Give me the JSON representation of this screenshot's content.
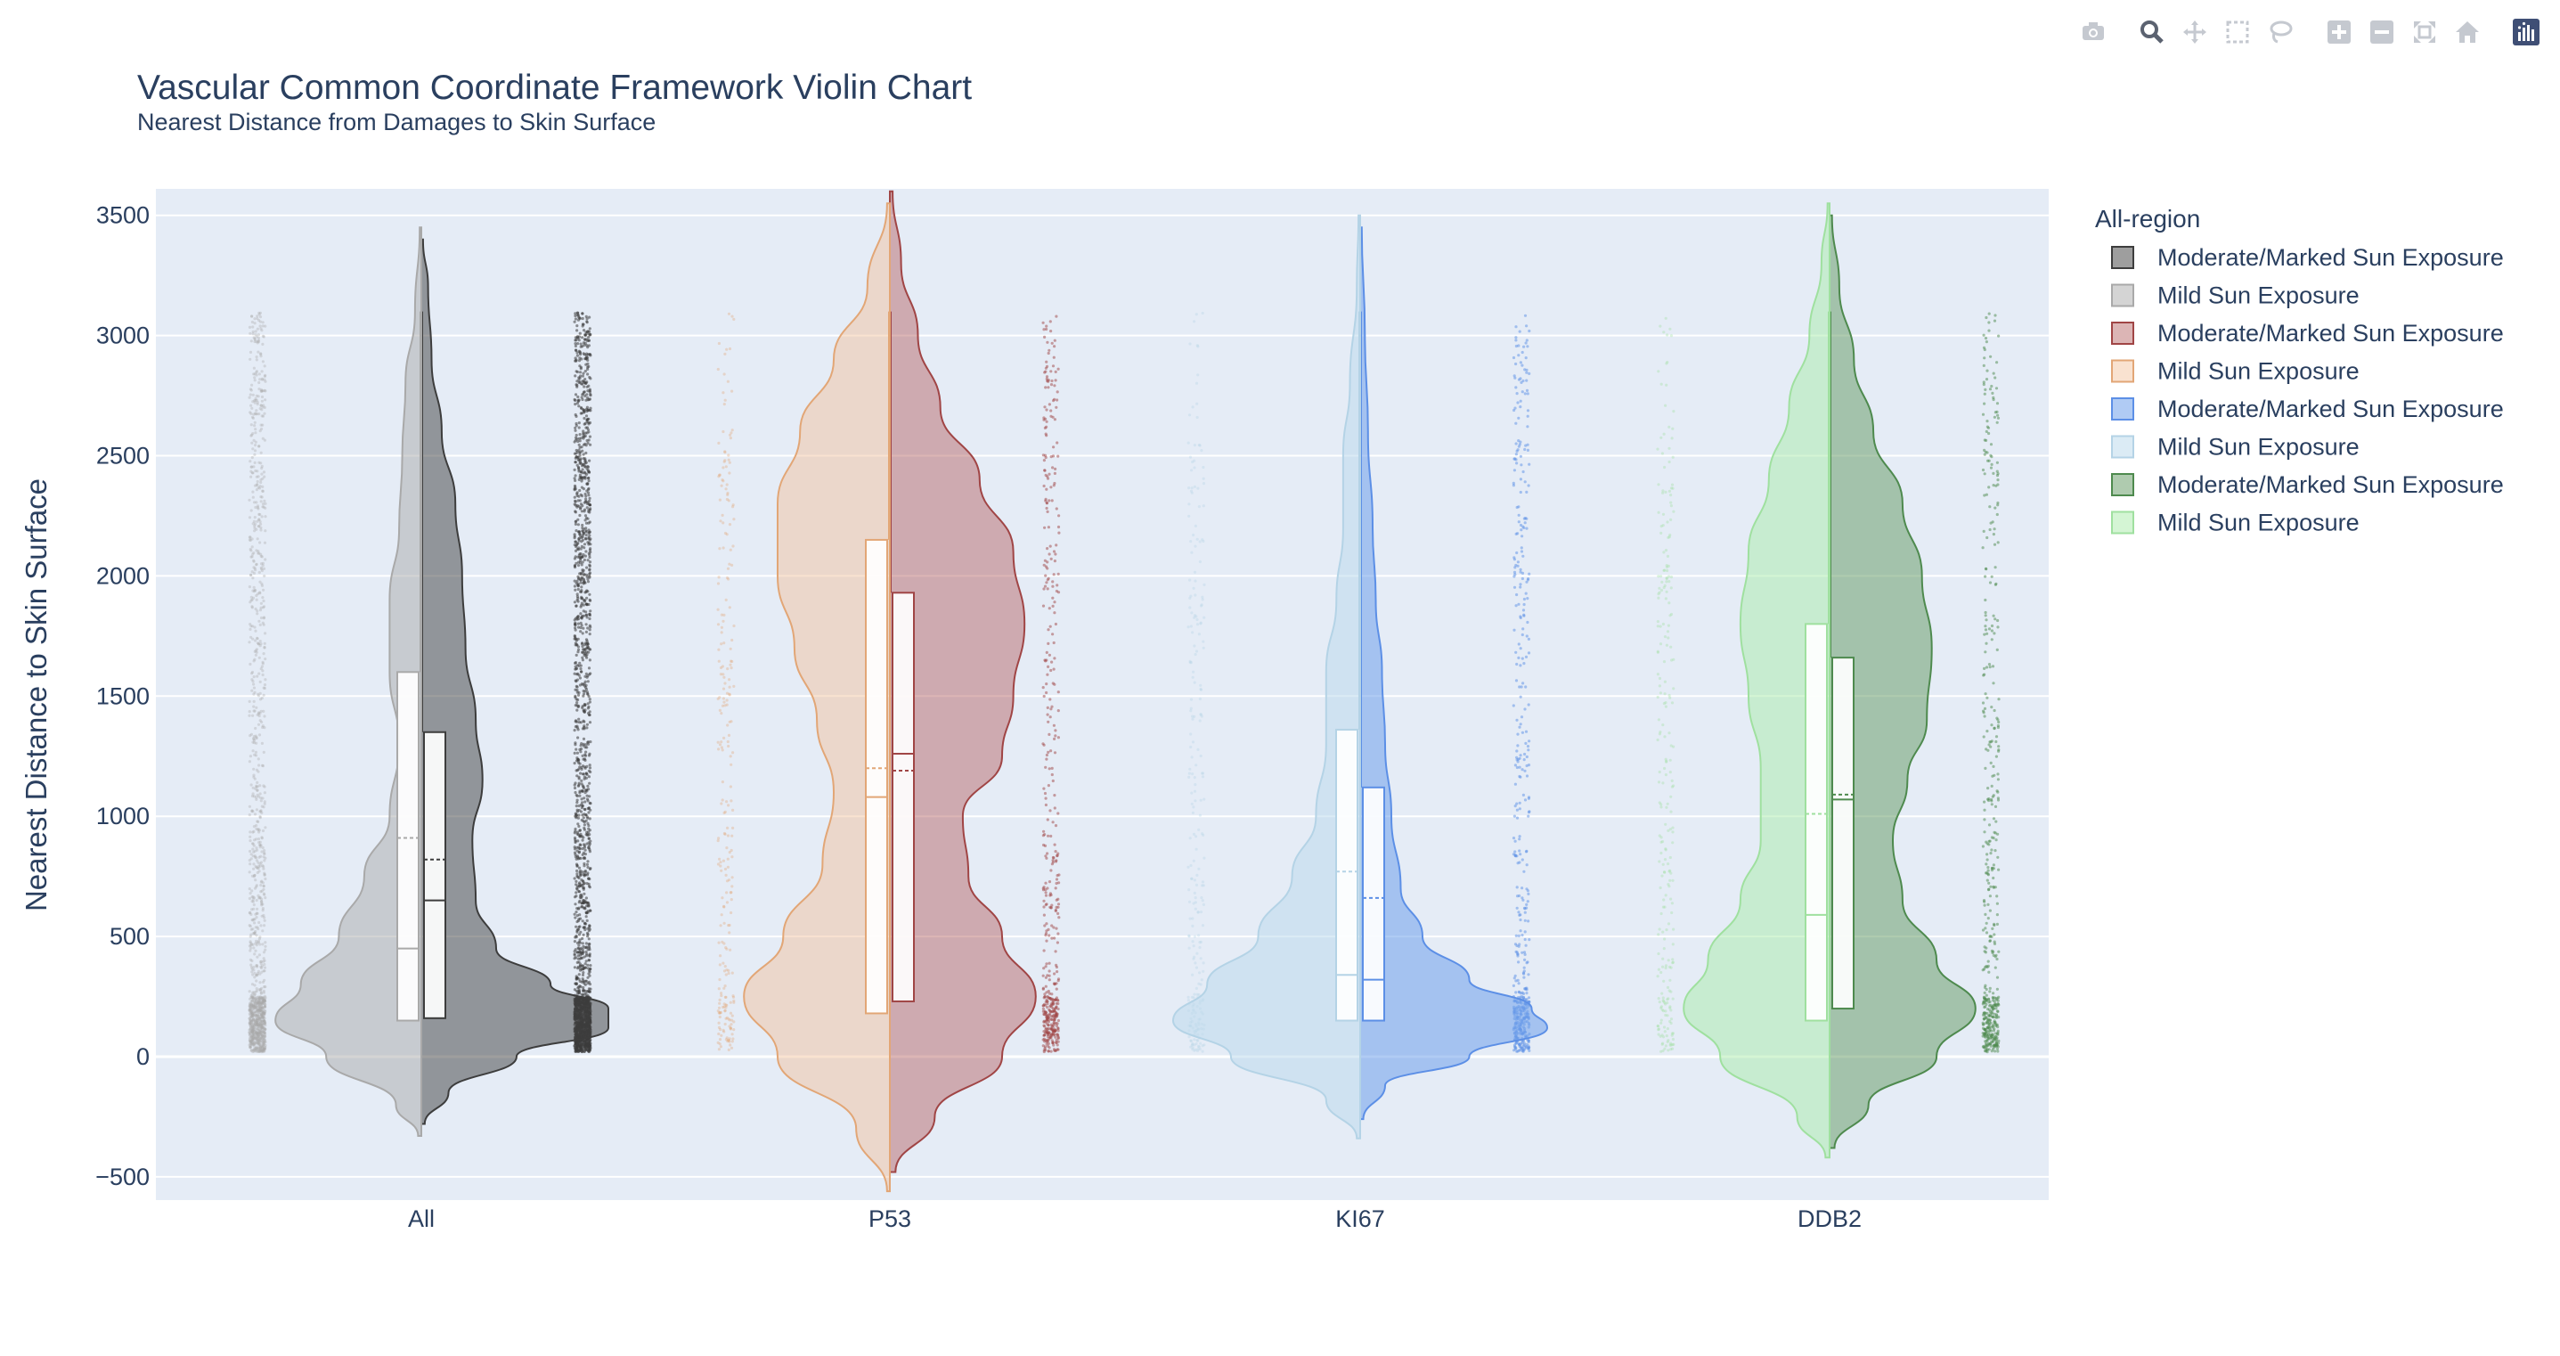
{
  "modebar": {
    "buttons": [
      {
        "name": "camera-icon",
        "group": 0
      },
      {
        "name": "zoom-icon",
        "group": 1
      },
      {
        "name": "pan-icon",
        "group": 1
      },
      {
        "name": "box-select-icon",
        "group": 1
      },
      {
        "name": "lasso-select-icon",
        "group": 1
      },
      {
        "name": "zoom-in-icon",
        "group": 2
      },
      {
        "name": "zoom-out-icon",
        "group": 2
      },
      {
        "name": "autoscale-icon",
        "group": 2
      },
      {
        "name": "reset-axes-icon",
        "group": 2
      },
      {
        "name": "plotly-logo-icon",
        "group": 3
      }
    ]
  },
  "chart_data": {
    "type": "violin",
    "title": "Vascular Common Coordinate Framework Violin Chart",
    "subtitle": "Nearest Distance from Damages to Skin Surface",
    "xlabel": "",
    "ylabel": "Nearest Distance to Skin Surface",
    "categories": [
      "All",
      "P53",
      "KI67",
      "DDB2"
    ],
    "ylim": [
      -600,
      3600
    ],
    "yticks": [
      -500,
      0,
      500,
      1000,
      1500,
      2000,
      2500,
      3000,
      3500
    ],
    "ytick_labels": [
      "−500",
      "0",
      "500",
      "1000",
      "1500",
      "2000",
      "2500",
      "3000",
      "3500"
    ],
    "grid": true,
    "legend_position": "right",
    "legend_title": "All-region",
    "series": [
      {
        "name": "Moderate/Marked Sun Exposure",
        "category": "All",
        "side": "positive",
        "color": "#3d3d3d",
        "fill": "rgba(61,61,61,0.5)",
        "q1": 160,
        "median": 650,
        "q3": 1350,
        "mean": 820,
        "whisker_max": 3100,
        "range": [
          -280,
          3400
        ],
        "density": [
          [
            -280,
            0.01
          ],
          [
            -150,
            0.08
          ],
          [
            0,
            0.28
          ],
          [
            120,
            0.55
          ],
          [
            200,
            0.55
          ],
          [
            300,
            0.38
          ],
          [
            450,
            0.22
          ],
          [
            650,
            0.16
          ],
          [
            900,
            0.15
          ],
          [
            1150,
            0.18
          ],
          [
            1400,
            0.16
          ],
          [
            1700,
            0.13
          ],
          [
            2000,
            0.12
          ],
          [
            2300,
            0.1
          ],
          [
            2600,
            0.06
          ],
          [
            2900,
            0.03
          ],
          [
            3200,
            0.02
          ],
          [
            3400,
            0.005
          ]
        ]
      },
      {
        "name": "Mild Sun Exposure",
        "category": "All",
        "side": "negative",
        "color": "#a9a9a9",
        "fill": "rgba(169,169,169,0.5)",
        "q1": 150,
        "median": 450,
        "q3": 1600,
        "mean": 910,
        "whisker_max": 3100,
        "range": [
          -330,
          3450
        ],
        "density": [
          [
            -330,
            0.01
          ],
          [
            -200,
            0.08
          ],
          [
            0,
            0.3
          ],
          [
            150,
            0.46
          ],
          [
            300,
            0.38
          ],
          [
            500,
            0.26
          ],
          [
            750,
            0.18
          ],
          [
            1000,
            0.1
          ],
          [
            1300,
            0.07
          ],
          [
            1600,
            0.1
          ],
          [
            1900,
            0.1
          ],
          [
            2200,
            0.07
          ],
          [
            2500,
            0.06
          ],
          [
            2800,
            0.05
          ],
          [
            3100,
            0.02
          ],
          [
            3450,
            0.005
          ]
        ]
      },
      {
        "name": "Moderate/Marked Sun Exposure",
        "category": "P53",
        "side": "positive",
        "color": "#a04545",
        "fill": "rgba(178,90,90,0.45)",
        "q1": 230,
        "median": 1260,
        "q3": 1930,
        "mean": 1190,
        "whisker_max": 3100,
        "range": [
          -480,
          3600
        ],
        "density": [
          [
            -480,
            0.01
          ],
          [
            -250,
            0.08
          ],
          [
            0,
            0.2
          ],
          [
            250,
            0.26
          ],
          [
            500,
            0.2
          ],
          [
            750,
            0.14
          ],
          [
            1000,
            0.13
          ],
          [
            1250,
            0.2
          ],
          [
            1500,
            0.22
          ],
          [
            1800,
            0.24
          ],
          [
            2100,
            0.22
          ],
          [
            2400,
            0.16
          ],
          [
            2700,
            0.09
          ],
          [
            3000,
            0.05
          ],
          [
            3300,
            0.02
          ],
          [
            3600,
            0.005
          ]
        ]
      },
      {
        "name": "Mild Sun Exposure",
        "category": "P53",
        "side": "negative",
        "color": "#e2a676",
        "fill": "rgba(242,190,150,0.45)",
        "q1": 180,
        "median": 1080,
        "q3": 2150,
        "mean": 1200,
        "whisker_max": 3100,
        "range": [
          -560,
          3550
        ],
        "density": [
          [
            -560,
            0.005
          ],
          [
            -300,
            0.06
          ],
          [
            0,
            0.2
          ],
          [
            250,
            0.26
          ],
          [
            500,
            0.19
          ],
          [
            800,
            0.12
          ],
          [
            1100,
            0.1
          ],
          [
            1400,
            0.13
          ],
          [
            1700,
            0.17
          ],
          [
            2000,
            0.2
          ],
          [
            2300,
            0.2
          ],
          [
            2600,
            0.16
          ],
          [
            2900,
            0.1
          ],
          [
            3200,
            0.04
          ],
          [
            3550,
            0.005
          ]
        ]
      },
      {
        "name": "Moderate/Marked Sun Exposure",
        "category": "KI67",
        "side": "positive",
        "color": "#5c8fe6",
        "fill": "rgba(112,160,235,0.55)",
        "q1": 150,
        "median": 320,
        "q3": 1120,
        "mean": 660,
        "whisker_max": 3100,
        "range": [
          -260,
          3450
        ],
        "density": [
          [
            -260,
            0.01
          ],
          [
            -120,
            0.08
          ],
          [
            0,
            0.35
          ],
          [
            120,
            0.6
          ],
          [
            200,
            0.55
          ],
          [
            320,
            0.35
          ],
          [
            500,
            0.2
          ],
          [
            700,
            0.13
          ],
          [
            1000,
            0.1
          ],
          [
            1300,
            0.08
          ],
          [
            1600,
            0.07
          ],
          [
            1900,
            0.05
          ],
          [
            2200,
            0.04
          ],
          [
            2600,
            0.025
          ],
          [
            3000,
            0.015
          ],
          [
            3450,
            0.005
          ]
        ]
      },
      {
        "name": "Mild Sun Exposure",
        "category": "KI67",
        "side": "negative",
        "color": "#b4d3e6",
        "fill": "rgba(190,218,236,0.55)",
        "q1": 150,
        "median": 340,
        "q3": 1360,
        "mean": 770,
        "whisker_max": 3100,
        "range": [
          -340,
          3500
        ],
        "density": [
          [
            -340,
            0.01
          ],
          [
            -180,
            0.1
          ],
          [
            0,
            0.38
          ],
          [
            150,
            0.55
          ],
          [
            300,
            0.45
          ],
          [
            500,
            0.3
          ],
          [
            750,
            0.2
          ],
          [
            1000,
            0.13
          ],
          [
            1300,
            0.1
          ],
          [
            1600,
            0.1
          ],
          [
            1900,
            0.07
          ],
          [
            2200,
            0.05
          ],
          [
            2500,
            0.05
          ],
          [
            2800,
            0.03
          ],
          [
            3200,
            0.01
          ],
          [
            3500,
            0.005
          ]
        ]
      },
      {
        "name": "Moderate/Marked Sun Exposure",
        "category": "DDB2",
        "side": "positive",
        "color": "#4e8a4e",
        "fill": "rgba(110,160,110,0.55)",
        "q1": 200,
        "median": 1070,
        "q3": 1660,
        "mean": 1090,
        "whisker_max": 3100,
        "range": [
          -380,
          3500
        ],
        "density": [
          [
            -380,
            0.01
          ],
          [
            -200,
            0.08
          ],
          [
            0,
            0.22
          ],
          [
            200,
            0.3
          ],
          [
            400,
            0.22
          ],
          [
            650,
            0.15
          ],
          [
            900,
            0.13
          ],
          [
            1150,
            0.16
          ],
          [
            1400,
            0.2
          ],
          [
            1700,
            0.21
          ],
          [
            2000,
            0.19
          ],
          [
            2300,
            0.15
          ],
          [
            2600,
            0.09
          ],
          [
            2900,
            0.05
          ],
          [
            3200,
            0.02
          ],
          [
            3500,
            0.005
          ]
        ]
      },
      {
        "name": "Mild Sun Exposure",
        "category": "DDB2",
        "side": "negative",
        "color": "#9fe09f",
        "fill": "rgba(170,235,170,0.5)",
        "q1": 150,
        "median": 590,
        "q3": 1800,
        "mean": 1010,
        "whisker_max": 3100,
        "range": [
          -420,
          3550
        ],
        "density": [
          [
            -420,
            0.01
          ],
          [
            -250,
            0.08
          ],
          [
            0,
            0.27
          ],
          [
            200,
            0.36
          ],
          [
            400,
            0.3
          ],
          [
            650,
            0.22
          ],
          [
            900,
            0.17
          ],
          [
            1200,
            0.17
          ],
          [
            1500,
            0.2
          ],
          [
            1800,
            0.22
          ],
          [
            2100,
            0.2
          ],
          [
            2400,
            0.15
          ],
          [
            2700,
            0.1
          ],
          [
            3000,
            0.05
          ],
          [
            3300,
            0.02
          ],
          [
            3550,
            0.005
          ]
        ]
      }
    ]
  }
}
